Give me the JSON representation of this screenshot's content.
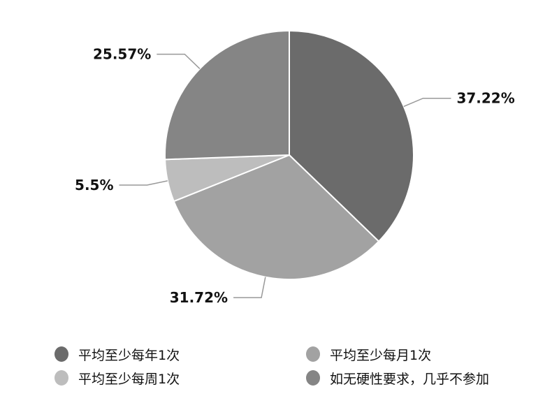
{
  "chart_data": {
    "type": "pie",
    "start_angle": "12 o'clock, clockwise",
    "slices": [
      {
        "name": "平均至少每年1次",
        "value": 37.22,
        "label": "37.22%",
        "color": "#6b6b6b"
      },
      {
        "name": "平均至少每月1次",
        "value": 31.72,
        "label": "31.72%",
        "color": "#a2a2a2"
      },
      {
        "name": "平均至少每周1次",
        "value": 5.5,
        "label": "5.5%",
        "color": "#bdbdbd"
      },
      {
        "name": "如无硬性要求，几乎不参加",
        "value": 25.57,
        "label": "25.57%",
        "color": "#858585"
      }
    ],
    "legend_placement": "bottom",
    "legend": [
      "平均至少每年1次",
      "平均至少每月1次",
      "平均至少每周1次",
      "如无硬性要求，几乎不参加"
    ]
  }
}
